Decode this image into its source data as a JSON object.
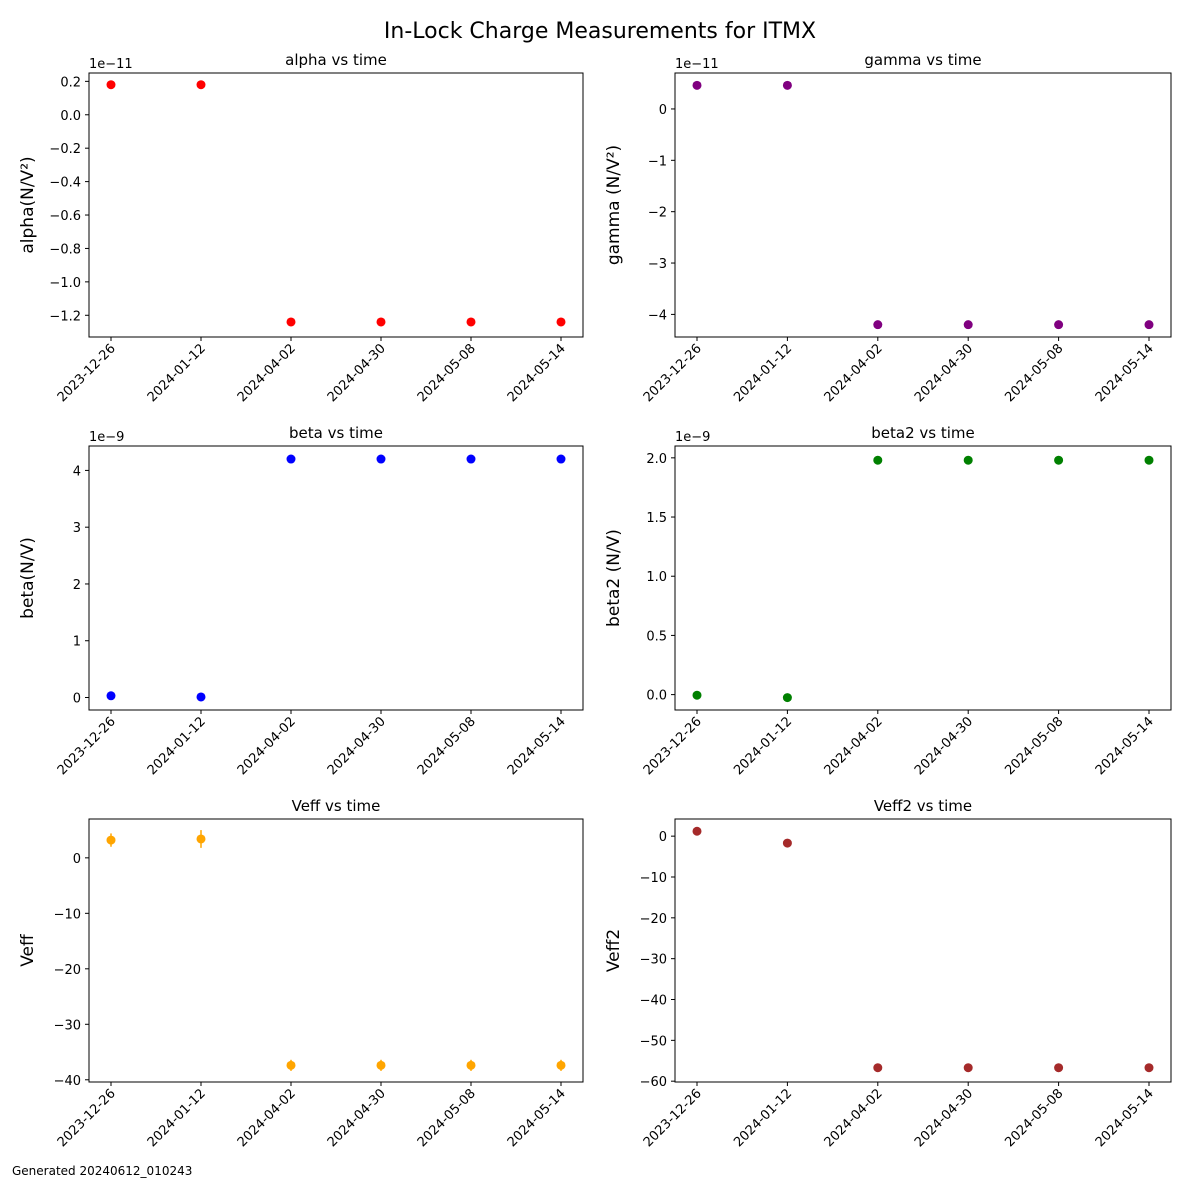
{
  "figure": {
    "title": "In-Lock Charge Measurements for ITMX",
    "footer": "Generated 20240612_010243"
  },
  "chart_data": [
    {
      "type": "scatter",
      "title": "alpha vs time",
      "xlabel": "",
      "ylabel": "alpha(N/V²)",
      "x": [
        "2023-12-26",
        "2024-01-12",
        "2024-04-02",
        "2024-04-30",
        "2024-05-08",
        "2024-05-14"
      ],
      "y": [
        1.8e-12,
        1.8e-12,
        -1.24e-11,
        -1.24e-11,
        -1.24e-11,
        -1.24e-11
      ],
      "offset_label": "1e−11",
      "ylim": [
        -1.33e-11,
        2.5e-12
      ],
      "yticks": [
        0.2,
        0.0,
        -0.2,
        -0.4,
        -0.6,
        -0.8,
        -1.0,
        -1.2
      ],
      "ytick_labels": [
        "0.2",
        "0.0",
        "−0.2",
        "−0.4",
        "−0.6",
        "−0.8",
        "−1.0",
        "−1.2"
      ],
      "color": "#ff0000",
      "grid": false
    },
    {
      "type": "scatter",
      "title": "gamma vs time",
      "xlabel": "",
      "ylabel": "gamma (N/V²)",
      "x": [
        "2023-12-26",
        "2024-01-12",
        "2024-04-02",
        "2024-04-30",
        "2024-05-08",
        "2024-05-14"
      ],
      "y": [
        4.6e-12,
        4.6e-12,
        -4.2e-11,
        -4.2e-11,
        -4.2e-11,
        -4.2e-11
      ],
      "offset_label": "1e−11",
      "ylim": [
        -4.44e-11,
        7e-12
      ],
      "yticks": [
        0,
        -1,
        -2,
        -3,
        -4
      ],
      "ytick_labels": [
        "0",
        "−1",
        "−2",
        "−3",
        "−4"
      ],
      "color": "#800080",
      "grid": false
    },
    {
      "type": "scatter",
      "title": "beta vs time",
      "xlabel": "",
      "ylabel": "beta(N/V)",
      "x": [
        "2023-12-26",
        "2024-01-12",
        "2024-04-02",
        "2024-04-30",
        "2024-05-08",
        "2024-05-14"
      ],
      "y": [
        3e-11,
        1e-11,
        4.2e-09,
        4.2e-09,
        4.2e-09,
        4.2e-09
      ],
      "offset_label": "1e−9",
      "ylim": [
        -2.2e-10,
        4.43e-09
      ],
      "yticks": [
        0,
        1,
        2,
        3,
        4
      ],
      "ytick_labels": [
        "0",
        "1",
        "2",
        "3",
        "4"
      ],
      "color": "#0000ff",
      "grid": false
    },
    {
      "type": "scatter",
      "title": "beta2 vs time",
      "xlabel": "",
      "ylabel": "beta2 (N/V)",
      "x": [
        "2023-12-26",
        "2024-01-12",
        "2024-04-02",
        "2024-04-30",
        "2024-05-08",
        "2024-05-14"
      ],
      "y": [
        -5e-12,
        -2.5e-11,
        1.98e-09,
        1.98e-09,
        1.98e-09,
        1.98e-09
      ],
      "offset_label": "1e−9",
      "ylim": [
        -1.3e-10,
        2.1e-09
      ],
      "yticks": [
        0.0,
        0.5,
        1.0,
        1.5,
        2.0
      ],
      "ytick_labels": [
        "0.0",
        "0.5",
        "1.0",
        "1.5",
        "2.0"
      ],
      "color": "#008000",
      "grid": false
    },
    {
      "type": "scatter",
      "title": "Veff vs time",
      "xlabel": "",
      "ylabel": "Veff",
      "x": [
        "2023-12-26",
        "2024-01-12",
        "2024-04-02",
        "2024-04-30",
        "2024-05-08",
        "2024-05-14"
      ],
      "y": [
        3.2,
        3.4,
        -37.4,
        -37.4,
        -37.4,
        -37.4
      ],
      "yerr": [
        1.2,
        1.6,
        1.0,
        1.0,
        1.0,
        1.0
      ],
      "ylim": [
        -40.4,
        7.0
      ],
      "yticks": [
        0,
        -10,
        -20,
        -30,
        -40
      ],
      "ytick_labels": [
        "0",
        "−10",
        "−20",
        "−30",
        "−40"
      ],
      "color": "#ffa500",
      "grid": false
    },
    {
      "type": "scatter",
      "title": "Veff2 vs time",
      "xlabel": "",
      "ylabel": "Veff2",
      "x": [
        "2023-12-26",
        "2024-01-12",
        "2024-04-02",
        "2024-04-30",
        "2024-05-08",
        "2024-05-14"
      ],
      "y": [
        1.2,
        -1.7,
        -56.7,
        -56.7,
        -56.7,
        -56.7
      ],
      "ylim": [
        -60.2,
        4.2
      ],
      "yticks": [
        0,
        -10,
        -20,
        -30,
        -40,
        -50,
        -60
      ],
      "ytick_labels": [
        "0",
        "−10",
        "−20",
        "−30",
        "−40",
        "−50",
        "−60"
      ],
      "color": "#a52a2a",
      "grid": false
    }
  ]
}
